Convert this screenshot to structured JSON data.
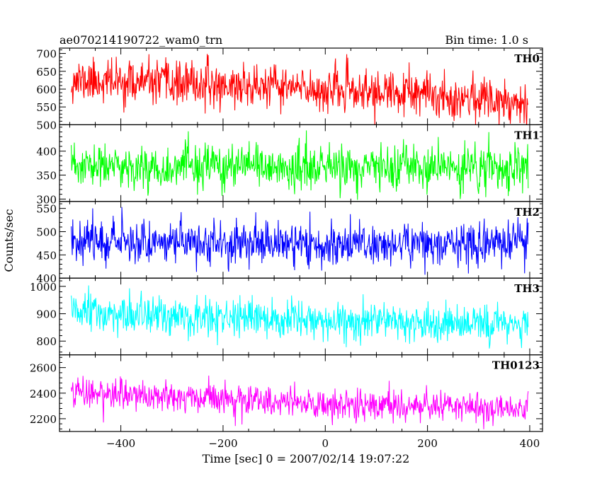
{
  "chart_data": {
    "type": "line",
    "title_left": "ae070214190722_wam0_trn",
    "title_right": "Bin time: 1.0 s",
    "xlabel": "Time [sec] 0 = 2007/02/14 19:07:22",
    "ylabel": "Counts/sec",
    "xlim": [
      -520,
      425
    ],
    "x_ticks": [
      -400,
      -200,
      0,
      200,
      400
    ],
    "x_tick_labels": [
      "−400",
      "−200",
      "0",
      "200",
      "400"
    ],
    "x_range": [
      -497,
      397
    ],
    "panels": [
      {
        "name": "TH0",
        "color": "#ff0000",
        "ylim": [
          500,
          715
        ],
        "y_ticks": [
          500,
          550,
          600,
          650,
          700
        ],
        "y_tick_labels": [
          "500",
          "550",
          "600",
          "650",
          "700"
        ],
        "trend": {
          "x": [
            -497,
            -300,
            -100,
            100,
            300,
            397
          ],
          "y": [
            625,
            615,
            605,
            590,
            575,
            565
          ]
        },
        "noise_sd": 30,
        "seed": 11
      },
      {
        "name": "TH1",
        "color": "#00ff00",
        "ylim": [
          295,
          455
        ],
        "y_ticks": [
          300,
          350,
          400
        ],
        "y_tick_labels": [
          "300",
          "350",
          "400"
        ],
        "trend": {
          "x": [
            -497,
            397
          ],
          "y": [
            367,
            363
          ]
        },
        "noise_sd": 23,
        "seed": 23
      },
      {
        "name": "TH2",
        "color": "#0000ff",
        "ylim": [
          400,
          565
        ],
        "y_ticks": [
          400,
          450,
          500,
          550
        ],
        "y_tick_labels": [
          "400",
          "450",
          "500",
          "550"
        ],
        "trend": {
          "x": [
            -497,
            -300,
            0,
            300,
            397
          ],
          "y": [
            485,
            478,
            472,
            475,
            478
          ]
        },
        "noise_sd": 23,
        "seed": 37
      },
      {
        "name": "TH3",
        "color": "#00ffff",
        "ylim": [
          750,
          1030
        ],
        "y_ticks": [
          800,
          900,
          1000
        ],
        "y_tick_labels": [
          "800",
          "900",
          "1000"
        ],
        "trend": {
          "x": [
            -497,
            -300,
            0,
            300,
            397
          ],
          "y": [
            905,
            885,
            870,
            865,
            868
          ]
        },
        "noise_sd": 35,
        "seed": 51
      },
      {
        "name": "TH0123",
        "color": "#ff00ff",
        "ylim": [
          2100,
          2700
        ],
        "y_ticks": [
          2200,
          2400,
          2600
        ],
        "y_tick_labels": [
          "2200",
          "2400",
          "2600"
        ],
        "trend": {
          "x": [
            -497,
            -300,
            0,
            300,
            397
          ],
          "y": [
            2410,
            2370,
            2310,
            2290,
            2280
          ]
        },
        "noise_sd": 60,
        "seed": 73
      }
    ]
  }
}
